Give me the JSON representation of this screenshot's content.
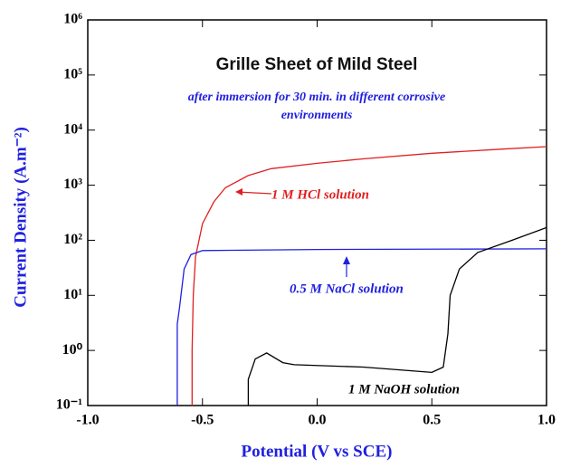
{
  "chart_data": {
    "type": "line",
    "title": "Grille Sheet of Mild Steel",
    "subtitle": [
      "after immersion for 30 min. in different corrosive",
      "environments"
    ],
    "x_label": "Potential (V  vs SCE)",
    "y_label": "Current Density (A.m⁻²)",
    "ylog": true,
    "xlim": [
      -1.0,
      1.0
    ],
    "ylim": [
      0.1,
      1000000
    ],
    "xticks": [
      {
        "value": -1.0,
        "label": "-1.0"
      },
      {
        "value": -0.5,
        "label": "-0.5"
      },
      {
        "value": 0,
        "label": "0.0"
      },
      {
        "value": 0.5,
        "label": "0.5"
      },
      {
        "value": 1.0,
        "label": "1.0"
      }
    ],
    "yticks": [
      {
        "value": 0.1,
        "label": "10⁻¹"
      },
      {
        "value": 1,
        "label": "10⁰"
      },
      {
        "value": 10,
        "label": "10¹"
      },
      {
        "value": 100,
        "label": "10²"
      },
      {
        "value": 1000,
        "label": "10³"
      },
      {
        "value": 10000,
        "label": "10⁴"
      },
      {
        "value": 100000,
        "label": "10⁵"
      },
      {
        "value": 1000000,
        "label": "10⁶"
      }
    ],
    "series": [
      {
        "name": "1 M HCl solution",
        "color": "#e02020",
        "x": [
          -0.545,
          -0.545,
          -0.54,
          -0.53,
          -0.5,
          -0.45,
          -0.4,
          -0.3,
          -0.2,
          0,
          0.2,
          0.5,
          0.8,
          1.0
        ],
        "values": [
          0.1,
          1,
          10,
          50,
          200,
          500,
          900,
          1500,
          2000,
          2500,
          3000,
          3800,
          4500,
          5000
        ]
      },
      {
        "name": "0.5 M NaCl solution",
        "color": "#2020e0",
        "x": [
          -0.61,
          -0.61,
          -0.6,
          -0.58,
          -0.55,
          -0.5,
          0,
          1.0
        ],
        "values": [
          0.1,
          3,
          6,
          30,
          55,
          65,
          68,
          70
        ]
      },
      {
        "name": "1 M NaOH solution",
        "color": "#000000",
        "x": [
          -0.3,
          -0.3,
          -0.27,
          -0.22,
          -0.15,
          -0.1,
          0.2,
          0.5,
          0.55,
          0.57,
          0.58,
          0.62,
          0.7,
          0.85,
          1.0
        ],
        "values": [
          0.1,
          0.3,
          0.7,
          0.9,
          0.6,
          0.55,
          0.5,
          0.4,
          0.5,
          2,
          10,
          30,
          60,
          100,
          170
        ]
      }
    ]
  }
}
